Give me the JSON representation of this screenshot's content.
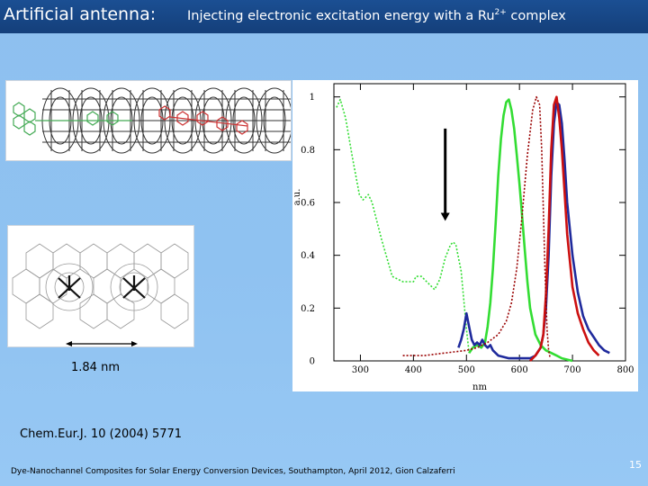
{
  "slide": {
    "title": "Artificial antenna:",
    "subtitle": "Injecting electronic excitation energy with a Ru",
    "subtitle_superscript": "2+",
    "subtitle_end": " complex",
    "scale_label": "1.84 nm",
    "citation": "Chem.Eur.J. 10 (2004) 5771",
    "footer": "Dye-Nanochannel Composites for Solar Energy Conversion Devices, Southampton, April 2012, Gion Calzaferri",
    "page_number": "15"
  },
  "colors": {
    "title_bar": "#17467f",
    "background": "#8fc2f1",
    "green": "#33dd33",
    "blue": "#1f2a9c",
    "red": "#cc1010",
    "dark_red": "#990000"
  },
  "chart_data": {
    "type": "line",
    "xlabel": "nm",
    "ylabel": "a.u.",
    "xlim": [
      250,
      800
    ],
    "ylim": [
      0,
      1.05
    ],
    "x_ticks": [
      300,
      400,
      500,
      600,
      700,
      800
    ],
    "y_ticks": [
      0,
      0.2,
      0.4,
      0.6,
      0.8,
      1
    ],
    "y_tick_labels": [
      "0",
      "0.2",
      "0.4",
      "0.6",
      "0.8",
      "1"
    ],
    "arrow": {
      "x": 460,
      "y_from": 0.88,
      "y_to": 0.53
    },
    "series": [
      {
        "color": "#33dd33",
        "style": "dotted",
        "x": [
          255,
          262,
          272,
          285,
          298,
          305,
          315,
          322,
          327,
          340,
          360,
          380,
          400,
          405,
          415,
          430,
          440,
          450,
          460,
          470,
          475,
          480,
          490,
          500,
          505
        ],
        "y": [
          0.96,
          0.99,
          0.92,
          0.77,
          0.63,
          0.61,
          0.63,
          0.6,
          0.56,
          0.46,
          0.32,
          0.3,
          0.3,
          0.32,
          0.32,
          0.29,
          0.27,
          0.31,
          0.39,
          0.44,
          0.45,
          0.44,
          0.34,
          0.12,
          0.03
        ]
      },
      {
        "color": "#33dd33",
        "style": "solid",
        "x": [
          505,
          512,
          520,
          528,
          535,
          540,
          545,
          550,
          555,
          560,
          565,
          570,
          575,
          580,
          585,
          590,
          595,
          600,
          605,
          610,
          615,
          620,
          630,
          640,
          650,
          660,
          670,
          680,
          700
        ],
        "y": [
          0.03,
          0.05,
          0.06,
          0.05,
          0.07,
          0.13,
          0.22,
          0.35,
          0.52,
          0.7,
          0.84,
          0.93,
          0.98,
          0.99,
          0.95,
          0.88,
          0.78,
          0.67,
          0.55,
          0.42,
          0.3,
          0.2,
          0.1,
          0.06,
          0.04,
          0.03,
          0.02,
          0.01,
          0.0
        ]
      },
      {
        "color": "#1f2a9c",
        "style": "solid",
        "x": [
          485,
          490,
          495,
          500,
          505,
          510,
          515,
          520,
          525,
          530,
          535,
          540,
          545,
          550,
          560,
          580,
          600,
          620,
          630,
          640,
          645,
          650,
          655,
          660,
          665,
          670,
          675,
          680,
          685,
          690,
          700,
          710,
          720,
          730,
          740,
          750,
          760,
          770
        ],
        "y": [
          0.05,
          0.08,
          0.12,
          0.18,
          0.13,
          0.08,
          0.06,
          0.07,
          0.06,
          0.08,
          0.06,
          0.05,
          0.06,
          0.04,
          0.02,
          0.01,
          0.01,
          0.01,
          0.02,
          0.05,
          0.1,
          0.2,
          0.4,
          0.7,
          0.9,
          0.98,
          0.97,
          0.9,
          0.76,
          0.6,
          0.4,
          0.26,
          0.17,
          0.12,
          0.09,
          0.06,
          0.04,
          0.03
        ]
      },
      {
        "color": "#cc1010",
        "style": "solid",
        "x": [
          620,
          630,
          640,
          645,
          650,
          655,
          660,
          665,
          670,
          675,
          680,
          685,
          690,
          700,
          710,
          720,
          730,
          740,
          750
        ],
        "y": [
          0.0,
          0.02,
          0.05,
          0.1,
          0.25,
          0.5,
          0.8,
          0.97,
          1.0,
          0.92,
          0.8,
          0.64,
          0.48,
          0.28,
          0.18,
          0.12,
          0.07,
          0.04,
          0.02
        ]
      },
      {
        "color": "#990000",
        "style": "dotted",
        "x": [
          380,
          420,
          460,
          500,
          520,
          540,
          560,
          575,
          585,
          595,
          605,
          615,
          625,
          632,
          638,
          642,
          648,
          652,
          655,
          658
        ],
        "y": [
          0.02,
          0.02,
          0.03,
          0.04,
          0.05,
          0.07,
          0.1,
          0.15,
          0.22,
          0.35,
          0.55,
          0.78,
          0.95,
          1.0,
          0.97,
          0.8,
          0.35,
          0.12,
          0.04,
          0.01
        ]
      }
    ]
  }
}
